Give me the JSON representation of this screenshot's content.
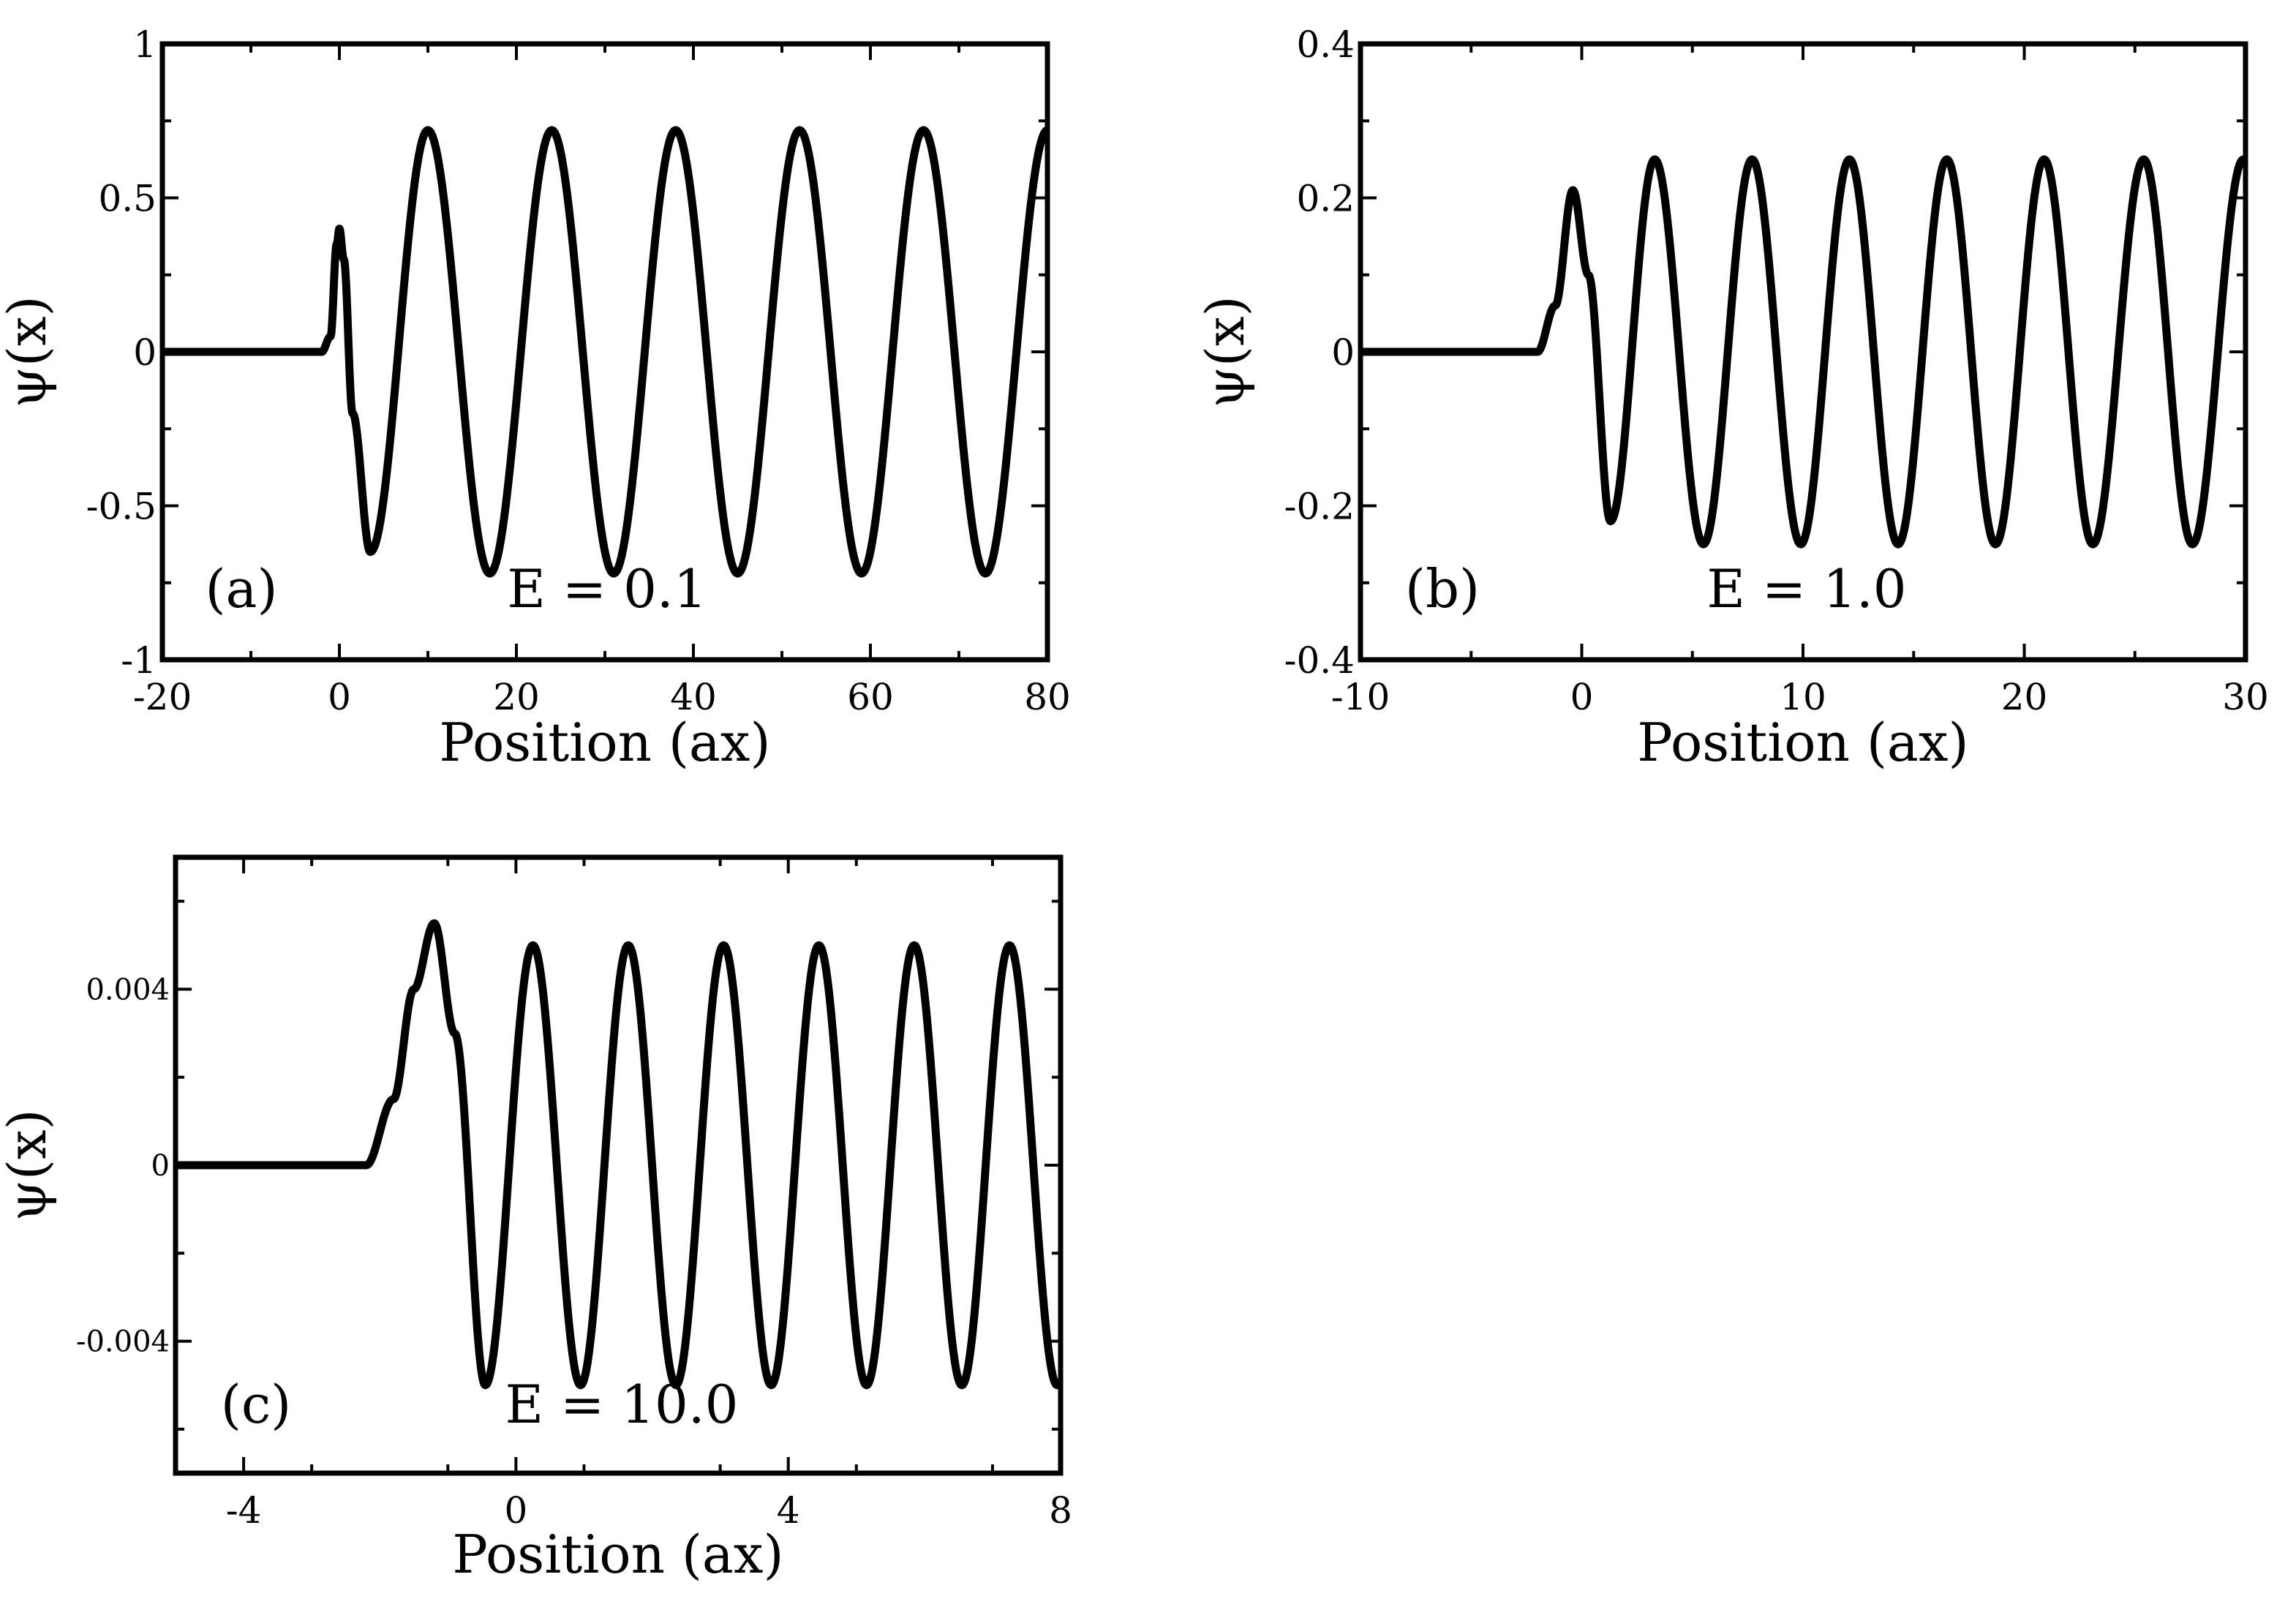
{
  "chart_data": [
    {
      "id": "a",
      "type": "line",
      "title": "",
      "xlabel": "Position (ax)",
      "ylabel": "ψ(x)",
      "xlim": [
        -20,
        80
      ],
      "ylim": [
        -1,
        1
      ],
      "xticks": [
        -20,
        0,
        20,
        40,
        60,
        80
      ],
      "yticks": [
        -1,
        -0.5,
        0,
        0.5,
        1
      ],
      "xtick_labels": [
        "-20",
        "0",
        "20",
        "40",
        "60",
        "80"
      ],
      "ytick_labels": [
        "-1",
        "-0.5",
        "0",
        "0.5",
        "1"
      ],
      "panel_label": "(a)",
      "annotation": "E = 0.1",
      "grid": false,
      "series": [
        {
          "x": [
            -20,
            -10,
            -2,
            -1,
            -0.3,
            0,
            0.5,
            1.5,
            3.5,
            10,
            17,
            24,
            31,
            38,
            45,
            52,
            59,
            66,
            73,
            80
          ],
          "values": [
            0,
            0,
            0,
            0.05,
            0.35,
            0.4,
            0.3,
            -0.2,
            -0.65,
            0.72,
            -0.72,
            0.72,
            -0.72,
            0.72,
            -0.72,
            0.72,
            -0.72,
            0.72,
            -0.72,
            0.72
          ]
        }
      ]
    },
    {
      "id": "b",
      "type": "line",
      "title": "",
      "xlabel": "Position (ax)",
      "ylabel": "ψ(x)",
      "xlim": [
        -10,
        30
      ],
      "ylim": [
        -0.4,
        0.4
      ],
      "xticks": [
        -10,
        0,
        10,
        20,
        30
      ],
      "yticks": [
        -0.4,
        -0.2,
        0,
        0.2,
        0.4
      ],
      "xtick_labels": [
        "-10",
        "0",
        "10",
        "20",
        "30"
      ],
      "ytick_labels": [
        "-0.4",
        "-0.2",
        "0",
        "0.2",
        "0.4"
      ],
      "panel_label": "(b)",
      "annotation": "E = 1.0",
      "grid": false,
      "series": [
        {
          "x": [
            -10,
            -5,
            -2,
            -1.2,
            -0.4,
            0.3,
            1.3,
            3.3,
            5.5,
            7.7,
            9.9,
            12.1,
            14.3,
            16.5,
            18.7,
            20.9,
            23.1,
            25.4,
            27.6,
            29.9
          ],
          "values": [
            0,
            0,
            0,
            0.06,
            0.21,
            0.1,
            -0.22,
            0.25,
            -0.25,
            0.25,
            -0.25,
            0.25,
            -0.25,
            0.25,
            -0.25,
            0.25,
            -0.25,
            0.25,
            -0.25,
            0.25
          ]
        }
      ]
    },
    {
      "id": "c",
      "type": "line",
      "title": "",
      "xlabel": "Position (ax)",
      "ylabel": "ψ(x)",
      "xlim": [
        -5,
        8
      ],
      "ylim": [
        -0.007,
        0.007
      ],
      "xticks": [
        -4,
        0,
        4,
        8
      ],
      "yticks": [
        -0.004,
        0,
        0.004
      ],
      "xtick_labels": [
        "-4",
        "0",
        "4",
        "8"
      ],
      "ytick_labels": [
        "-0.004",
        "0",
        "0.004"
      ],
      "panel_label": "(c)",
      "annotation": "E = 10.0",
      "grid": false,
      "series": [
        {
          "x": [
            -5,
            -3,
            -2.2,
            -1.8,
            -1.5,
            -1.2,
            -0.9,
            -0.45,
            0.25,
            0.95,
            1.65,
            2.35,
            3.05,
            3.75,
            4.45,
            5.15,
            5.85,
            6.55,
            7.25,
            7.95
          ],
          "values": [
            0,
            0,
            0,
            0.0015,
            0.004,
            0.0055,
            0.003,
            -0.005,
            0.005,
            -0.005,
            0.005,
            -0.005,
            0.005,
            -0.005,
            0.005,
            -0.005,
            0.005,
            -0.005,
            0.005,
            -0.005
          ]
        }
      ]
    }
  ]
}
